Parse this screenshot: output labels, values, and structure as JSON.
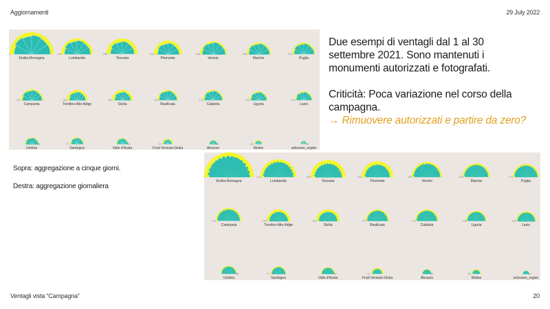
{
  "header": {
    "title": "Aggiornamenti",
    "date": "29 July 2022"
  },
  "footer": {
    "title": "Ventagli vista “Campagna”",
    "page": "20"
  },
  "description": {
    "line1": "Due esempi di ventagli dal 1 al 30",
    "line2": "settembre 2021. Sono mantenuti i",
    "line3": "monumenti autorizzati e fotografati.",
    "line4": "Criticità: Poca variazione nel corso della",
    "line5": "campagna.",
    "line6": "→ Rimuovere autorizzati e partire da zero?"
  },
  "notes": {
    "top": "Sopra: aggregazione a cinque giorni.",
    "right": "Destra: aggregazione giornaliera"
  },
  "colors": {
    "fill": "#2bbcb3",
    "outline": "#f4f52a",
    "background": "#ebe6e1",
    "accent": "#e0a020"
  },
  "chart_data": [
    {
      "type": "radial-fan",
      "title": "Aggregazione a cinque giorni",
      "segments_per_fan": 6,
      "series": [
        {
          "name": "Emilia-Romagna",
          "value": 798,
          "min": 500
        },
        {
          "name": "Lombardia",
          "value": 414,
          "min": 500
        },
        {
          "name": "Toscana",
          "value": 395
        },
        {
          "name": "Piemonte",
          "value": 324
        },
        {
          "name": "Veneto",
          "value": 296
        },
        {
          "name": "Marche",
          "value": 238
        },
        {
          "name": "Puglia",
          "value": 221
        },
        {
          "name": "Campania",
          "value": 211
        },
        {
          "name": "Trentino-Alto Adige",
          "value": 183
        },
        {
          "name": "Sicilia",
          "value": 180
        },
        {
          "name": "Basilicata",
          "value": 175
        },
        {
          "name": "Calabria",
          "value": 174
        },
        {
          "name": "Liguria",
          "value": 135
        },
        {
          "name": "Lazio",
          "value": 129
        },
        {
          "name": "Umbria",
          "value": 85
        },
        {
          "name": "Sardegna",
          "value": 77
        },
        {
          "name": "Valle d'Aosta",
          "value": 62
        },
        {
          "name": "Friuli Venezia Giulia",
          "value": 47
        },
        {
          "name": "Abruzzo",
          "value": 30
        },
        {
          "name": "Molise",
          "value": 28
        },
        {
          "name": "unknown_region",
          "value": 16
        }
      ]
    },
    {
      "type": "radial-fan",
      "title": "Aggregazione giornaliera",
      "segments_per_fan": 30,
      "series": [
        {
          "name": "Emilia-Romagna",
          "value": 798,
          "min": 500
        },
        {
          "name": "Lombardia",
          "value": 414,
          "min": 500
        },
        {
          "name": "Toscana",
          "value": 395
        },
        {
          "name": "Piemonte",
          "value": 324
        },
        {
          "name": "Veneto",
          "value": 296
        },
        {
          "name": "Marche",
          "value": 238
        },
        {
          "name": "Puglia",
          "value": 221
        },
        {
          "name": "Campania",
          "value": 211
        },
        {
          "name": "Trentino-Alto Adige",
          "value": 183
        },
        {
          "name": "Sicilia",
          "value": 180
        },
        {
          "name": "Basilicata",
          "value": 175
        },
        {
          "name": "Calabria",
          "value": 174
        },
        {
          "name": "Liguria",
          "value": 135
        },
        {
          "name": "Lazio",
          "value": 129
        },
        {
          "name": "Umbria",
          "value": 85
        },
        {
          "name": "Sardegna",
          "value": 77
        },
        {
          "name": "Valle d'Aosta",
          "value": 62
        },
        {
          "name": "Friuli Venezia Giulia",
          "value": 47
        },
        {
          "name": "Abruzzo",
          "value": 30
        },
        {
          "name": "Molise",
          "value": 28
        },
        {
          "name": "unknown_region",
          "value": 16
        }
      ]
    }
  ]
}
